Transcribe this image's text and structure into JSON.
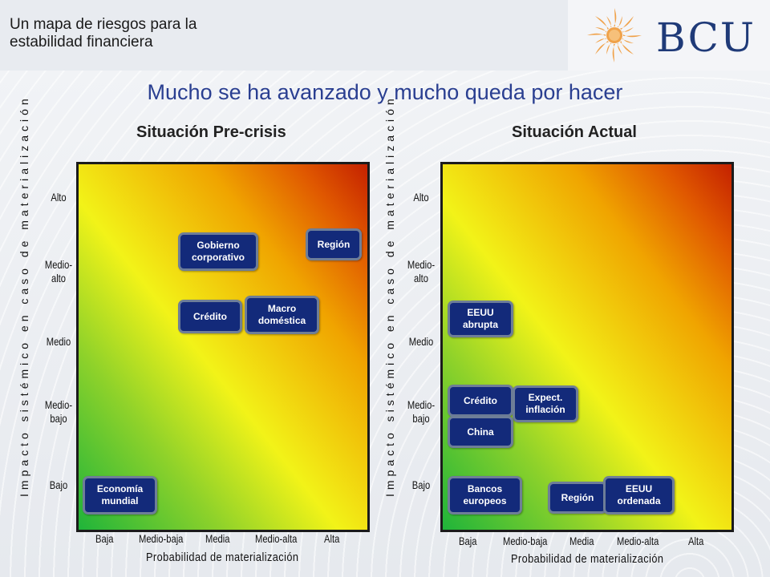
{
  "header": {
    "deck_title": "Un mapa de riesgos para la estabilidad financiera",
    "logo_text": "BCU"
  },
  "slide_title": "Mucho se ha avanzado y mucho queda por hacer",
  "panels": [
    {
      "title": "Situación Pre-crisis",
      "y_axis_label": "Impacto sistémico en caso de materialización",
      "x_axis_label": "Probabilidad de materialización",
      "y_ticks": [
        "Alto",
        "Medio-alto",
        "Medio",
        "Medio-bajo",
        "Bajo"
      ],
      "x_ticks": [
        "Baja",
        "Medio-baja",
        "Media",
        "Medio-alta",
        "Alta"
      ],
      "risks": [
        {
          "label": "Gobierno corporativo",
          "probability": "Medio-baja/Media",
          "impact": "Medio-alto"
        },
        {
          "label": "Región",
          "probability": "Alta",
          "impact": "Alto/Medio-alto"
        },
        {
          "label": "Crédito",
          "probability": "Medio-baja/Media",
          "impact": "Medio-alto/Medio"
        },
        {
          "label": "Macro doméstica",
          "probability": "Media/Medio-alta",
          "impact": "Medio-alto/Medio"
        },
        {
          "label": "Economía mundial",
          "probability": "Baja",
          "impact": "Bajo"
        }
      ]
    },
    {
      "title": "Situación Actual",
      "y_axis_label": "Impacto sistémico en caso de materialización",
      "x_axis_label": "Probabilidad de materialización",
      "y_ticks": [
        "Alto",
        "Medio-alto",
        "Medio",
        "Medio-bajo",
        "Bajo"
      ],
      "x_ticks": [
        "Baja",
        "Medio-baja",
        "Media",
        "Medio-alta",
        "Alta"
      ],
      "risks": [
        {
          "label": "EEUU abrupta",
          "probability": "Baja",
          "impact": "Medio-alto/Medio"
        },
        {
          "label": "Crédito",
          "probability": "Baja",
          "impact": "Medio-bajo"
        },
        {
          "label": "Expect. inflación",
          "probability": "Medio-baja",
          "impact": "Medio-bajo"
        },
        {
          "label": "China",
          "probability": "Baja",
          "impact": "Medio-bajo/Bajo"
        },
        {
          "label": "Bancos europeos",
          "probability": "Baja",
          "impact": "Bajo"
        },
        {
          "label": "Región",
          "probability": "Media",
          "impact": "Bajo"
        },
        {
          "label": "EEUU ordenada",
          "probability": "Medio-alta",
          "impact": "Bajo"
        }
      ]
    }
  ],
  "colors": {
    "title_blue": "#2a3f91",
    "risk_box": "#132a7a",
    "risk_border": "#6e7e98",
    "logo_blue": "#1f3a78",
    "sun_orange": "#f0a24a"
  },
  "icons": {
    "logo_sun": "sun-emblem-icon"
  }
}
